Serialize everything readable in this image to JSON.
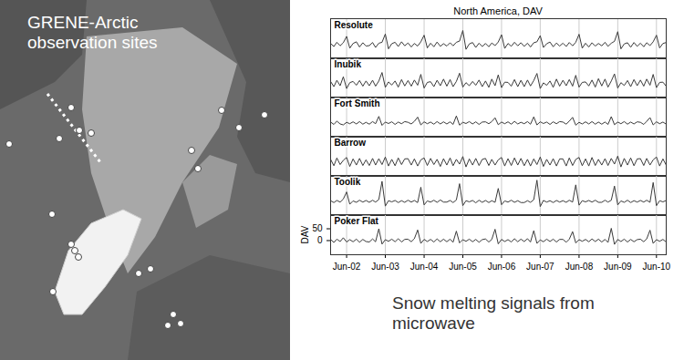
{
  "map": {
    "title": "GRENE-Arctic observation sites"
  },
  "caption": "Snow melting signals from microwave",
  "chart_data": {
    "type": "line",
    "title": "North America, DAV",
    "ylabel": "DAV",
    "grid": true,
    "x": [
      "2002-01",
      "2002-02",
      "2002-03",
      "2002-04",
      "2002-05",
      "2002-06",
      "2002-07",
      "2002-08",
      "2002-09",
      "2002-10",
      "2002-11",
      "2002-12",
      "2003-01",
      "2003-02",
      "2003-03",
      "2003-04",
      "2003-05",
      "2003-06",
      "2003-07",
      "2003-08",
      "2003-09",
      "2003-10",
      "2003-11",
      "2003-12",
      "2004-01",
      "2004-02",
      "2004-03",
      "2004-04",
      "2004-05",
      "2004-06",
      "2004-07",
      "2004-08",
      "2004-09",
      "2004-10",
      "2004-11",
      "2004-12",
      "2005-01",
      "2005-02",
      "2005-03",
      "2005-04",
      "2005-05",
      "2005-06",
      "2005-07",
      "2005-08",
      "2005-09",
      "2005-10",
      "2005-11",
      "2005-12",
      "2006-01",
      "2006-02",
      "2006-03",
      "2006-04",
      "2006-05",
      "2006-06",
      "2006-07",
      "2006-08",
      "2006-09",
      "2006-10",
      "2006-11",
      "2006-12",
      "2007-01",
      "2007-02",
      "2007-03",
      "2007-04",
      "2007-05",
      "2007-06",
      "2007-07",
      "2007-08",
      "2007-09",
      "2007-10",
      "2007-11",
      "2007-12",
      "2008-01",
      "2008-02",
      "2008-03",
      "2008-04",
      "2008-05",
      "2008-06",
      "2008-07",
      "2008-08",
      "2008-09",
      "2008-10",
      "2008-11",
      "2008-12",
      "2009-01",
      "2009-02",
      "2009-03",
      "2009-04",
      "2009-05",
      "2009-06",
      "2009-07",
      "2009-08",
      "2009-09",
      "2009-10",
      "2009-11",
      "2009-12",
      "2010-01",
      "2010-02",
      "2010-03",
      "2010-04",
      "2010-05",
      "2010-06",
      "2010-07",
      "2010-08",
      "2010-09"
    ],
    "xlim": [
      "2002-01",
      "2010-09"
    ],
    "xticks": [
      {
        "value": "2002-06",
        "label": "Jun-02"
      },
      {
        "value": "2003-06",
        "label": "Jun-03"
      },
      {
        "value": "2004-06",
        "label": "Jun-04"
      },
      {
        "value": "2005-06",
        "label": "Jun-05"
      },
      {
        "value": "2006-06",
        "label": "Jun-06"
      },
      {
        "value": "2007-06",
        "label": "Jun-07"
      },
      {
        "value": "2008-06",
        "label": "Jun-08"
      },
      {
        "value": "2009-06",
        "label": "Jun-09"
      },
      {
        "value": "2010-06",
        "label": "Jun-10"
      }
    ],
    "ylim": [
      -60,
      110
    ],
    "yticks": [
      0,
      50
    ],
    "series": [
      {
        "name": "Resolute",
        "color": "#3a3a3a",
        "values": [
          5,
          -8,
          10,
          -5,
          8,
          35,
          -15,
          5,
          12,
          -10,
          8,
          -6,
          -4,
          9,
          -12,
          6,
          10,
          45,
          -18,
          4,
          10,
          -8,
          12,
          -5,
          7,
          -10,
          5,
          -6,
          12,
          40,
          -14,
          6,
          -9,
          11,
          -7,
          4,
          -6,
          8,
          -5,
          10,
          15,
          60,
          -20,
          3,
          9,
          -12,
          6,
          -8,
          5,
          -9,
          7,
          -4,
          11,
          42,
          -16,
          5,
          -7,
          10,
          -5,
          8,
          -7,
          6,
          -10,
          8,
          12,
          38,
          -12,
          4,
          11,
          -9,
          7,
          -6,
          6,
          -8,
          9,
          -5,
          10,
          44,
          -15,
          6,
          -10,
          8,
          -6,
          5,
          -5,
          10,
          -7,
          6,
          14,
          55,
          -18,
          3,
          8,
          -11,
          9,
          -7,
          6,
          -9,
          8,
          -4,
          12,
          40,
          -14,
          5,
          9
        ]
      },
      {
        "name": "Inubik",
        "color": "#3a3a3a",
        "values": [
          10,
          -12,
          15,
          -8,
          30,
          -20,
          5,
          10,
          -6,
          14,
          -10,
          12,
          -8,
          15,
          -10,
          12,
          48,
          -15,
          8,
          -5,
          12,
          -14,
          18,
          -9,
          14,
          -10,
          16,
          -6,
          40,
          -18,
          6,
          9,
          -12,
          15,
          -8,
          20,
          -10,
          18,
          -12,
          10,
          45,
          -14,
          5,
          -8,
          10,
          -6,
          16,
          -12,
          12,
          -15,
          20,
          -8,
          38,
          -16,
          7,
          6,
          -10,
          18,
          -12,
          15,
          -12,
          16,
          -9,
          14,
          44,
          -20,
          4,
          -6,
          12,
          -15,
          20,
          -10,
          15,
          -8,
          18,
          -10,
          36,
          -14,
          6,
          8,
          -9,
          16,
          -14,
          22,
          -9,
          20,
          -14,
          12,
          42,
          -18,
          5,
          -7,
          14,
          -12,
          18,
          -8,
          16,
          -10,
          20,
          -6,
          40,
          -16,
          6,
          7,
          -10
        ]
      },
      {
        "name": "Fort Smith",
        "color": "#3a3a3a",
        "values": [
          4,
          -6,
          8,
          -4,
          -8,
          3,
          -3,
          5,
          -4,
          6,
          -5,
          3,
          -5,
          6,
          -3,
          28,
          -10,
          4,
          -2,
          5,
          -6,
          4,
          -3,
          6,
          3,
          -4,
          7,
          25,
          -8,
          5,
          -3,
          4,
          -5,
          6,
          -4,
          5,
          -4,
          5,
          -6,
          30,
          -9,
          3,
          -2,
          6,
          -4,
          5,
          -6,
          4,
          5,
          -3,
          6,
          22,
          -7,
          4,
          -3,
          5,
          -5,
          7,
          -4,
          3,
          -3,
          6,
          -5,
          26,
          -8,
          5,
          -2,
          4,
          -6,
          5,
          -3,
          6,
          4,
          -5,
          8,
          24,
          -9,
          3,
          -4,
          5,
          -4,
          6,
          -5,
          4,
          -5,
          4,
          -6,
          27,
          -7,
          4,
          -3,
          6,
          -5,
          4,
          -4,
          5,
          3,
          -6,
          7,
          23,
          -8,
          5,
          -3,
          4,
          -5
        ]
      },
      {
        "name": "Barrow",
        "color": "#3a3a3a",
        "values": [
          12,
          -15,
          18,
          -10,
          8,
          20,
          -18,
          14,
          -12,
          16,
          -14,
          10,
          -14,
          16,
          -12,
          15,
          -10,
          22,
          -16,
          12,
          -15,
          18,
          -10,
          14,
          15,
          -12,
          14,
          -16,
          10,
          18,
          -14,
          16,
          -10,
          12,
          -18,
          15,
          -12,
          18,
          -15,
          12,
          -8,
          24,
          -20,
          14,
          -12,
          16,
          -14,
          12,
          16,
          -14,
          12,
          -12,
          10,
          20,
          -16,
          15,
          -14,
          18,
          -12,
          16,
          -15,
          12,
          -16,
          14,
          -10,
          22,
          -18,
          12,
          -12,
          15,
          -16,
          14,
          14,
          -16,
          18,
          -14,
          12,
          20,
          -15,
          14,
          -16,
          20,
          -14,
          12,
          -12,
          15,
          -14,
          16,
          -8,
          26,
          -20,
          16,
          -12,
          18,
          -15,
          14,
          15,
          -14,
          16,
          -12,
          10,
          22,
          -16,
          14,
          -12
        ]
      },
      {
        "name": "Toolik",
        "color": "#3a3a3a",
        "values": [
          3,
          -5,
          4,
          -3,
          10,
          40,
          -12,
          2,
          -4,
          5,
          -3,
          4,
          -4,
          5,
          -3,
          8,
          85,
          -20,
          3,
          -2,
          4,
          -5,
          3,
          -4,
          5,
          -3,
          4,
          -5,
          60,
          -15,
          2,
          -3,
          5,
          -4,
          6,
          -3,
          -3,
          4,
          -5,
          6,
          75,
          -18,
          3,
          -2,
          4,
          -6,
          5,
          -4,
          4,
          -5,
          3,
          -4,
          55,
          -14,
          2,
          -3,
          5,
          -4,
          3,
          -5,
          -5,
          3,
          -4,
          7,
          90,
          -22,
          4,
          -3,
          3,
          -5,
          4,
          -3,
          3,
          -4,
          5,
          -3,
          70,
          -16,
          3,
          -2,
          4,
          -3,
          5,
          -4,
          -4,
          5,
          -3,
          5,
          65,
          -15,
          2,
          -4,
          5,
          -5,
          3,
          -3,
          4,
          -3,
          5,
          -4,
          80,
          -18,
          3,
          -2,
          4
        ]
      },
      {
        "name": "Poker Flat",
        "color": "#3a3a3a",
        "values": [
          5,
          -8,
          6,
          -4,
          12,
          -6,
          4,
          -5,
          6,
          -7,
          5,
          -4,
          -6,
          7,
          -5,
          50,
          -15,
          4,
          -3,
          6,
          -5,
          8,
          -6,
          5,
          6,
          -5,
          8,
          45,
          -12,
          5,
          -4,
          5,
          -6,
          7,
          -5,
          6,
          -5,
          6,
          -7,
          40,
          -10,
          4,
          -3,
          6,
          -5,
          5,
          -7,
          4,
          7,
          -6,
          5,
          48,
          -14,
          5,
          -4,
          4,
          -6,
          8,
          -5,
          6,
          -4,
          8,
          -6,
          42,
          -12,
          3,
          -5,
          6,
          -4,
          6,
          -6,
          5,
          5,
          -7,
          6,
          38,
          -10,
          4,
          -3,
          5,
          -5,
          7,
          -4,
          6,
          -6,
          5,
          -8,
          52,
          -16,
          5,
          -4,
          6,
          -6,
          5,
          -5,
          4,
          6,
          -5,
          7,
          44,
          -12,
          4,
          -3,
          5,
          -6
        ]
      }
    ]
  }
}
